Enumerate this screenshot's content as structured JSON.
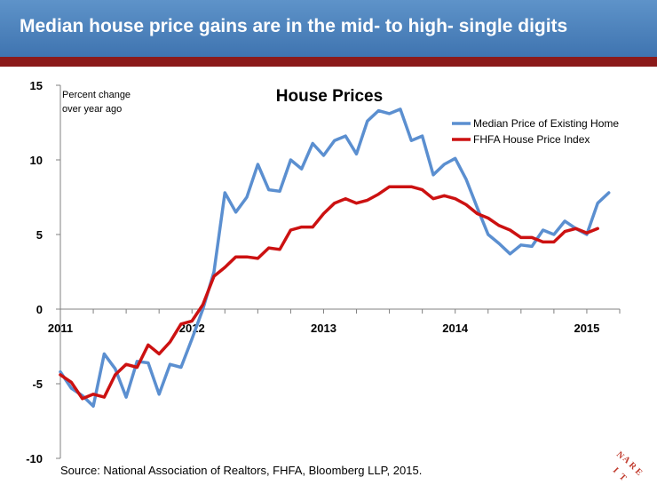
{
  "header": {
    "title": "Median house price gains are in the mid- to high- single digits"
  },
  "source": "Source: National Association of Realtors, FHFA, Bloomberg LLP, 2015.",
  "logo": {
    "text": "NAREIT"
  },
  "colors": {
    "header": "#4a80bd",
    "accent_bar": "#8b1a1a",
    "series1": "#5b8fd0",
    "series2": "#cc1111"
  },
  "chart_data": {
    "type": "line",
    "title": "House Prices",
    "ylabel": "Percent change over year ago",
    "ylabel_lines": [
      "Percent change",
      "over year ago"
    ],
    "xlabel": "",
    "ylim": [
      -10,
      15
    ],
    "yticks": [
      15,
      10,
      5,
      0,
      -5,
      -10
    ],
    "xticks": [
      2011,
      2012,
      2013,
      2014,
      2015
    ],
    "x_range": [
      2011,
      2015.25
    ],
    "legend_position": "top-right",
    "grid": false,
    "series": [
      {
        "name": "Median Price of Existing Home",
        "color": "#5b8fd0",
        "x": [
          2011.0,
          2011.083,
          2011.167,
          2011.25,
          2011.333,
          2011.417,
          2011.5,
          2011.583,
          2011.667,
          2011.75,
          2011.833,
          2011.917,
          2012.0,
          2012.083,
          2012.167,
          2012.25,
          2012.333,
          2012.417,
          2012.5,
          2012.583,
          2012.667,
          2012.75,
          2012.833,
          2012.917,
          2013.0,
          2013.083,
          2013.167,
          2013.25,
          2013.333,
          2013.417,
          2013.5,
          2013.583,
          2013.667,
          2013.75,
          2013.833,
          2013.917,
          2014.0,
          2014.083,
          2014.167,
          2014.25,
          2014.333,
          2014.417,
          2014.5,
          2014.583,
          2014.667,
          2014.75,
          2014.833,
          2014.917,
          2015.0,
          2015.083,
          2015.167
        ],
        "values": [
          -4.2,
          -5.3,
          -5.8,
          -6.5,
          -3.0,
          -4.0,
          -5.9,
          -3.5,
          -3.6,
          -5.7,
          -3.7,
          -3.9,
          -2.0,
          0.0,
          2.5,
          7.8,
          6.5,
          7.5,
          9.7,
          8.0,
          7.9,
          10.0,
          9.4,
          11.1,
          10.3,
          11.3,
          11.6,
          10.4,
          12.6,
          13.3,
          13.1,
          13.4,
          11.3,
          11.6,
          9.0,
          9.7,
          10.1,
          8.7,
          6.8,
          5.0,
          4.4,
          3.7,
          4.3,
          4.2,
          5.3,
          5.0,
          5.9,
          5.4,
          5.0,
          7.1,
          7.8
        ]
      },
      {
        "name": "FHFA House Price Index",
        "color": "#cc1111",
        "x": [
          2011.0,
          2011.083,
          2011.167,
          2011.25,
          2011.333,
          2011.417,
          2011.5,
          2011.583,
          2011.667,
          2011.75,
          2011.833,
          2011.917,
          2012.0,
          2012.083,
          2012.167,
          2012.25,
          2012.333,
          2012.417,
          2012.5,
          2012.583,
          2012.667,
          2012.75,
          2012.833,
          2012.917,
          2013.0,
          2013.083,
          2013.167,
          2013.25,
          2013.333,
          2013.417,
          2013.5,
          2013.583,
          2013.667,
          2013.75,
          2013.833,
          2013.917,
          2014.0,
          2014.083,
          2014.167,
          2014.25,
          2014.333,
          2014.417,
          2014.5,
          2014.583,
          2014.667,
          2014.75,
          2014.833,
          2014.917,
          2015.0,
          2015.083
        ],
        "values": [
          -4.4,
          -4.9,
          -6.0,
          -5.7,
          -5.9,
          -4.4,
          -3.7,
          -3.9,
          -2.4,
          -3.0,
          -2.2,
          -1.0,
          -0.8,
          0.3,
          2.2,
          2.8,
          3.5,
          3.5,
          3.4,
          4.1,
          4.0,
          5.3,
          5.5,
          5.5,
          6.4,
          7.1,
          7.4,
          7.1,
          7.3,
          7.7,
          8.2,
          8.2,
          8.2,
          8.0,
          7.4,
          7.6,
          7.4,
          7.0,
          6.4,
          6.1,
          5.6,
          5.3,
          4.8,
          4.8,
          4.5,
          4.5,
          5.2,
          5.4,
          5.1,
          5.4
        ]
      }
    ]
  }
}
